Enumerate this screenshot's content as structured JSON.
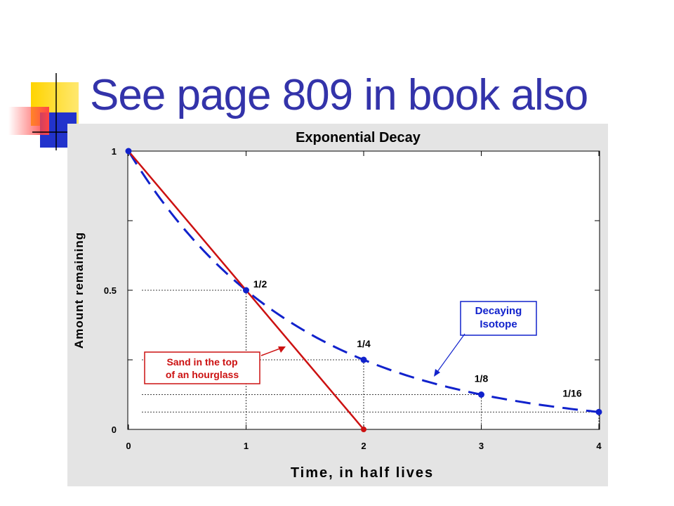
{
  "slide": {
    "title": "See page 809 in book also",
    "colors": {
      "title": "#3333aa",
      "deco_yellow": "#ffcc00",
      "deco_blue": "#2233cc",
      "deco_red": "#ff5555"
    }
  },
  "chart_data": {
    "type": "line",
    "title": "Exponential Decay",
    "xlabel": "Time, in half lives",
    "ylabel": "Amount remaining",
    "xlim": [
      0,
      4
    ],
    "ylim": [
      0,
      1
    ],
    "x_ticks": [
      "0",
      "1",
      "2",
      "3",
      "4"
    ],
    "y_ticks": [
      "0",
      "",
      "0.5",
      "",
      "1"
    ],
    "grid": false,
    "series": [
      {
        "name": "Sand in the top of an hourglass",
        "style": "solid",
        "color": "#cc1111",
        "x": [
          0,
          2
        ],
        "y": [
          1,
          0
        ]
      },
      {
        "name": "Decaying Isotope",
        "style": "dashed",
        "color": "#1122cc",
        "x": [
          0,
          1,
          2,
          3,
          4
        ],
        "y": [
          1,
          0.5,
          0.25,
          0.125,
          0.0625
        ],
        "point_labels": [
          "",
          "1/2",
          "1/4",
          "1/8",
          "1/16"
        ]
      }
    ],
    "annotations": [
      {
        "lines": [
          "Sand in the top",
          "of an hourglass"
        ],
        "color": "#cc1111"
      },
      {
        "lines": [
          "Decaying",
          "Isotope"
        ],
        "color": "#1122cc"
      }
    ]
  }
}
